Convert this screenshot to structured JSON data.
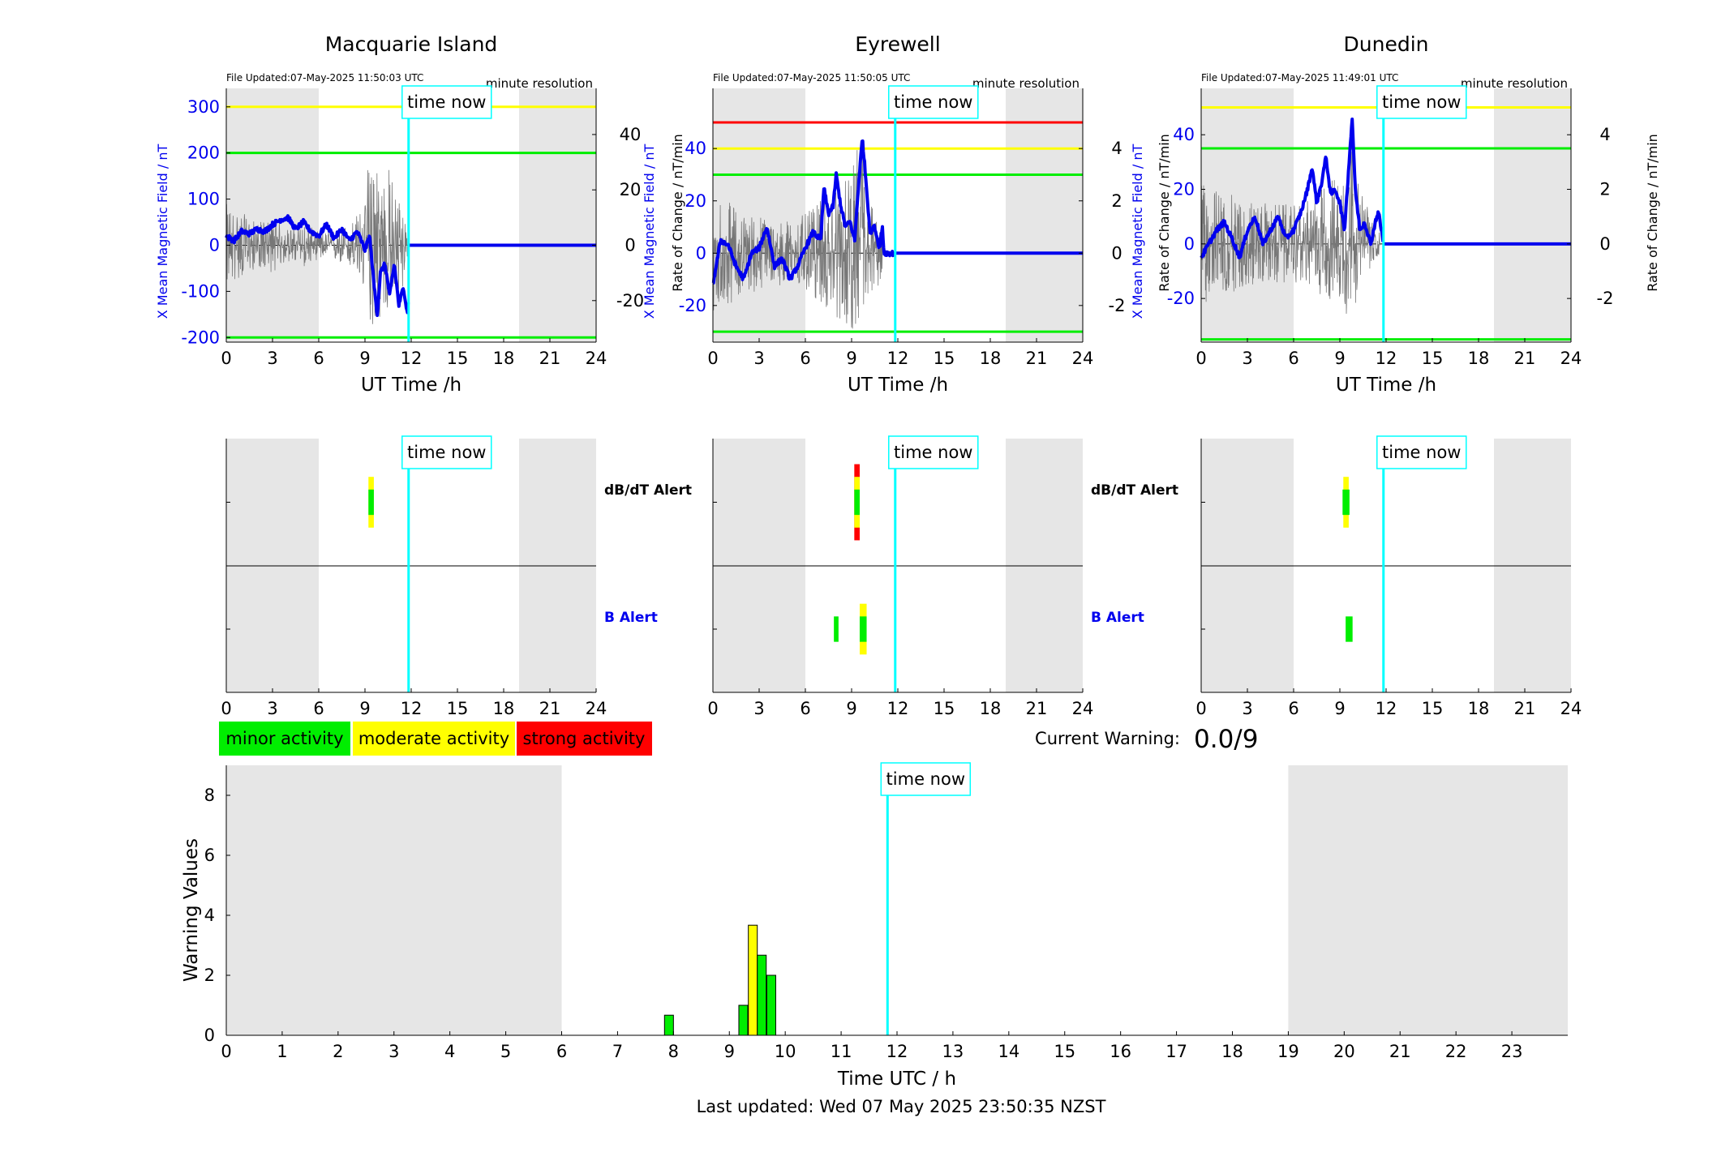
{
  "colors": {
    "minor": "#00ee00",
    "moderate": "#ffff00",
    "strong": "#ff0000",
    "field_line": "#0000ee",
    "time_now": "#00ffff",
    "night_shade": "#e6e6e6",
    "left_axis": "#0000ee"
  },
  "legend": {
    "minor": "minor activity",
    "moderate": "moderate activity",
    "strong": "strong activity"
  },
  "time_now_label": "time now",
  "time_now_h": 11.83,
  "night_bands_h": [
    [
      0,
      6
    ],
    [
      19,
      24
    ]
  ],
  "current_warning": {
    "label": "Current Warning:",
    "value": "0.0/9"
  },
  "last_updated": "Last updated: Wed 07 May 2025 23:50:35 NZST",
  "alert_labels": {
    "dbdt": "dB/dT Alert",
    "b": "B Alert"
  },
  "chart_data": [
    {
      "type": "line",
      "title": "Macquarie Island",
      "file_updated": "File Updated:07-May-2025 11:50:03 UTC",
      "resolution": "minute resolution",
      "xlabel": "UT Time /h",
      "ylabel_left": "X Mean Magnetic Field / nT",
      "ylabel_right": "Rate of Change / nT/min",
      "xlim": [
        0,
        24
      ],
      "xticks": [
        0,
        3,
        6,
        9,
        12,
        15,
        18,
        21,
        24
      ],
      "ylim_left": [
        -210,
        340
      ],
      "yticks_left": [
        -200,
        -100,
        0,
        100,
        200,
        300
      ],
      "ylim_right": [
        -35,
        56.67
      ],
      "yticks_right": [
        -20,
        0,
        20,
        40
      ],
      "thresholds": [
        {
          "value": 300,
          "color": "#ffff00"
        },
        {
          "value": 200,
          "color": "#00ee00"
        },
        {
          "value": -200,
          "color": "#00ee00"
        }
      ],
      "series_field": {
        "x": [
          0,
          0.5,
          1,
          1.5,
          2,
          2.5,
          3,
          3.5,
          4,
          4.5,
          5,
          5.5,
          6,
          6.5,
          7,
          7.5,
          8,
          8.5,
          9,
          9.3,
          9.6,
          9.8,
          10,
          10.3,
          10.6,
          10.9,
          11.2,
          11.5,
          11.75,
          12,
          24
        ],
        "y": [
          20,
          10,
          30,
          25,
          35,
          30,
          45,
          55,
          60,
          35,
          50,
          30,
          20,
          45,
          15,
          35,
          10,
          30,
          -10,
          20,
          -90,
          -150,
          -60,
          -40,
          -110,
          -40,
          -130,
          -90,
          -150,
          0,
          0
        ]
      },
      "series_rate_envelope": {
        "x": [
          0,
          1,
          2,
          3,
          4,
          5,
          6,
          7,
          8,
          9,
          9.4,
          10,
          10.5,
          11,
          11.5,
          11.8
        ],
        "upper": [
          15,
          12,
          8,
          10,
          6,
          8,
          5,
          6,
          8,
          15,
          48,
          25,
          30,
          20,
          15,
          2
        ],
        "lower": [
          -15,
          -12,
          -8,
          -10,
          -6,
          -8,
          -5,
          -6,
          -8,
          -18,
          -30,
          -28,
          -25,
          -22,
          -15,
          -2
        ]
      },
      "alerts": {
        "dbdt": [
          {
            "h": 9.4,
            "w": 0.35,
            "level": "moderate",
            "span": [
              -0.2,
              0.2
            ]
          },
          {
            "h": 9.4,
            "w": 0.35,
            "level": "minor",
            "span": [
              -0.1,
              0.1
            ]
          }
        ],
        "b": []
      }
    },
    {
      "type": "line",
      "title": "Eyrewell",
      "file_updated": "File Updated:07-May-2025 11:50:05 UTC",
      "resolution": "minute resolution",
      "xlabel": "UT Time /h",
      "ylabel_left": "X Mean Magnetic Field / nT",
      "ylabel_right": "Rate of Change / nT/min",
      "xlim": [
        0,
        24
      ],
      "xticks": [
        0,
        3,
        6,
        9,
        12,
        15,
        18,
        21,
        24
      ],
      "ylim_left": [
        -34,
        63
      ],
      "yticks_left": [
        -20,
        0,
        20,
        40
      ],
      "ylim_right": [
        -3.4,
        6.3
      ],
      "yticks_right": [
        -2,
        0,
        2,
        4
      ],
      "thresholds": [
        {
          "value": 50,
          "color": "#ff0000"
        },
        {
          "value": 40,
          "color": "#ffff00"
        },
        {
          "value": 30,
          "color": "#00ee00"
        },
        {
          "value": -30,
          "color": "#00ee00"
        }
      ],
      "series_field": {
        "x": [
          0,
          0.5,
          1,
          1.5,
          2,
          2.5,
          3,
          3.5,
          4,
          4.5,
          5,
          5.5,
          6,
          6.5,
          7,
          7.2,
          7.5,
          7.8,
          8,
          8.3,
          8.6,
          8.9,
          9.2,
          9.5,
          9.7,
          9.9,
          10.2,
          10.5,
          10.8,
          11,
          11.1,
          11.83,
          24
        ],
        "y": [
          -12,
          5,
          3,
          -5,
          -10,
          0,
          2,
          10,
          -5,
          -2,
          -10,
          -5,
          2,
          8,
          5,
          25,
          15,
          18,
          30,
          18,
          10,
          12,
          5,
          30,
          44,
          30,
          8,
          10,
          2,
          10,
          0,
          0,
          0
        ]
      },
      "series_rate_envelope": {
        "x": [
          0,
          1,
          2,
          3,
          4,
          5,
          6,
          7,
          8,
          9,
          9.7,
          10,
          10.5,
          11
        ],
        "upper": [
          2.5,
          2,
          1.5,
          1.5,
          1.2,
          1.3,
          1.5,
          2,
          2.5,
          3,
          5.2,
          3,
          1.5,
          1
        ],
        "lower": [
          -2.5,
          -2,
          -1.5,
          -1.5,
          -1.2,
          -1.3,
          -1.5,
          -2,
          -2.5,
          -3,
          -2.5,
          -2.3,
          -1.5,
          -1
        ]
      },
      "alerts": {
        "dbdt": [
          {
            "h": 9.35,
            "w": 0.35,
            "level": "strong",
            "span": [
              -0.3,
              0.3
            ]
          },
          {
            "h": 9.35,
            "w": 0.35,
            "level": "moderate",
            "span": [
              -0.2,
              0.2
            ]
          },
          {
            "h": 9.35,
            "w": 0.35,
            "level": "minor",
            "span": [
              -0.1,
              0.1
            ]
          }
        ],
        "b": [
          {
            "h": 8.0,
            "w": 0.3,
            "level": "minor",
            "span": [
              -0.1,
              0.1
            ]
          },
          {
            "h": 9.75,
            "w": 0.45,
            "level": "moderate",
            "span": [
              -0.2,
              0.2
            ]
          },
          {
            "h": 9.75,
            "w": 0.45,
            "level": "minor",
            "span": [
              -0.1,
              0.1
            ]
          }
        ]
      }
    },
    {
      "type": "line",
      "title": "Dunedin",
      "file_updated": "File Updated:07-May-2025 11:49:01 UTC",
      "resolution": "minute resolution",
      "xlabel": "UT Time /h",
      "ylabel_left": "X Mean Magnetic Field / nT",
      "ylabel_right": "Rate of Change / nT/min",
      "xlim": [
        0,
        24
      ],
      "xticks": [
        0,
        3,
        6,
        9,
        12,
        15,
        18,
        21,
        24
      ],
      "ylim_left": [
        -36,
        57
      ],
      "yticks_left": [
        -20,
        0,
        20,
        40
      ],
      "ylim_right": [
        -3.6,
        5.7
      ],
      "yticks_right": [
        -2,
        0,
        2,
        4
      ],
      "thresholds": [
        {
          "value": 50,
          "color": "#ffff00"
        },
        {
          "value": 35,
          "color": "#00ee00"
        },
        {
          "value": -35,
          "color": "#00ee00"
        }
      ],
      "series_field": {
        "x": [
          0,
          0.5,
          1,
          1.5,
          2,
          2.5,
          3,
          3.5,
          4,
          4.5,
          5,
          5.5,
          6,
          6.5,
          6.9,
          7.2,
          7.5,
          7.8,
          8.1,
          8.4,
          8.7,
          9,
          9.3,
          9.6,
          9.8,
          10,
          10.3,
          10.6,
          11,
          11.3,
          11.5,
          11.83,
          24
        ],
        "y": [
          -5,
          0,
          5,
          8,
          2,
          -5,
          5,
          10,
          0,
          5,
          10,
          2,
          5,
          12,
          20,
          28,
          15,
          22,
          32,
          18,
          20,
          15,
          5,
          30,
          46,
          20,
          5,
          8,
          0,
          8,
          12,
          0,
          0
        ]
      },
      "series_rate_envelope": {
        "x": [
          0,
          1,
          2,
          3,
          4,
          5,
          6,
          7,
          8,
          9,
          9.6,
          10,
          10.5,
          11,
          11.6
        ],
        "upper": [
          2.2,
          2,
          1.8,
          1.6,
          1.5,
          1.5,
          1.4,
          1.6,
          2.2,
          2.8,
          5.3,
          2.5,
          1.8,
          1.2,
          0.5
        ],
        "lower": [
          -2.2,
          -2,
          -1.8,
          -1.6,
          -1.5,
          -1.5,
          -1.4,
          -1.6,
          -2,
          -2.3,
          -3,
          -2.2,
          -1.5,
          -1.2,
          -0.5
        ]
      },
      "alerts": {
        "dbdt": [
          {
            "h": 9.4,
            "w": 0.35,
            "level": "moderate",
            "span": [
              -0.2,
              0.2
            ]
          },
          {
            "h": 9.4,
            "w": 0.45,
            "level": "minor",
            "span": [
              -0.1,
              0.1
            ]
          }
        ],
        "b": [
          {
            "h": 9.6,
            "w": 0.45,
            "level": "minor",
            "span": [
              -0.1,
              0.1
            ]
          }
        ]
      }
    },
    {
      "type": "bar",
      "xlabel": "Time UTC / h",
      "ylabel": "Warning Values",
      "xlim": [
        0,
        24
      ],
      "xticks": [
        0,
        1,
        2,
        3,
        4,
        5,
        6,
        7,
        8,
        9,
        10,
        11,
        12,
        13,
        14,
        15,
        16,
        17,
        18,
        19,
        20,
        21,
        22,
        23
      ],
      "ylim": [
        0,
        9
      ],
      "yticks": [
        0,
        2,
        4,
        6,
        8
      ],
      "bars": [
        {
          "x": 7.92,
          "w": 0.16,
          "value": 0.67,
          "level": "minor"
        },
        {
          "x": 9.25,
          "w": 0.16,
          "value": 1.0,
          "level": "minor"
        },
        {
          "x": 9.42,
          "w": 0.16,
          "value": 3.67,
          "level": "moderate"
        },
        {
          "x": 9.58,
          "w": 0.16,
          "value": 2.67,
          "level": "minor"
        },
        {
          "x": 9.75,
          "w": 0.16,
          "value": 2.0,
          "level": "minor"
        }
      ]
    }
  ]
}
